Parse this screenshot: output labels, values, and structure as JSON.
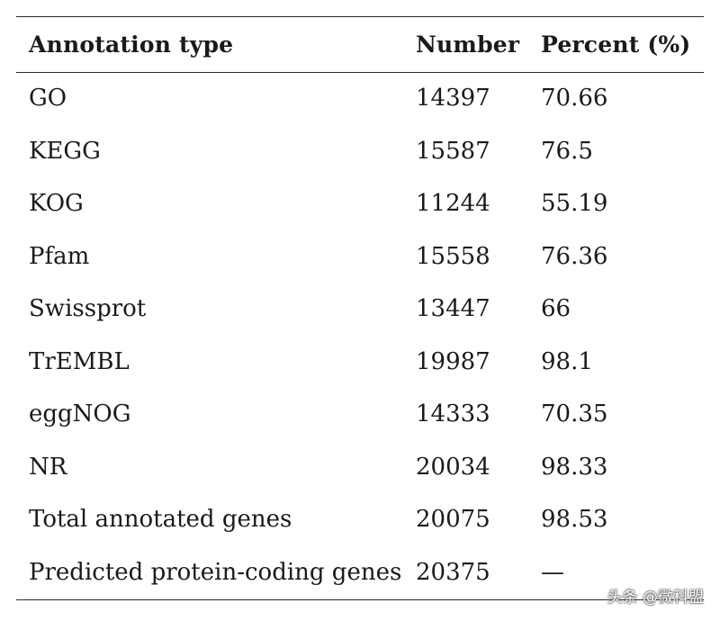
{
  "table": {
    "headers": {
      "type": "Annotation type",
      "number": "Number",
      "percent": "Percent (%)"
    },
    "rows": [
      {
        "type": "GO",
        "number": "14397",
        "percent": "70.66"
      },
      {
        "type": "KEGG",
        "number": "15587",
        "percent": "76.5"
      },
      {
        "type": "KOG",
        "number": "11244",
        "percent": "55.19"
      },
      {
        "type": "Pfam",
        "number": "15558",
        "percent": "76.36"
      },
      {
        "type": "Swissprot",
        "number": "13447",
        "percent": "66"
      },
      {
        "type": "TrEMBL",
        "number": "19987",
        "percent": "98.1"
      },
      {
        "type": "eggNOG",
        "number": "14333",
        "percent": "70.35"
      },
      {
        "type": "NR",
        "number": "20034",
        "percent": "98.33"
      },
      {
        "type": "Total annotated genes",
        "number": "20075",
        "percent": "98.53"
      },
      {
        "type": "Predicted protein-coding genes",
        "number": "20375",
        "percent": "—"
      }
    ]
  },
  "watermark": "头条 @微科盟"
}
